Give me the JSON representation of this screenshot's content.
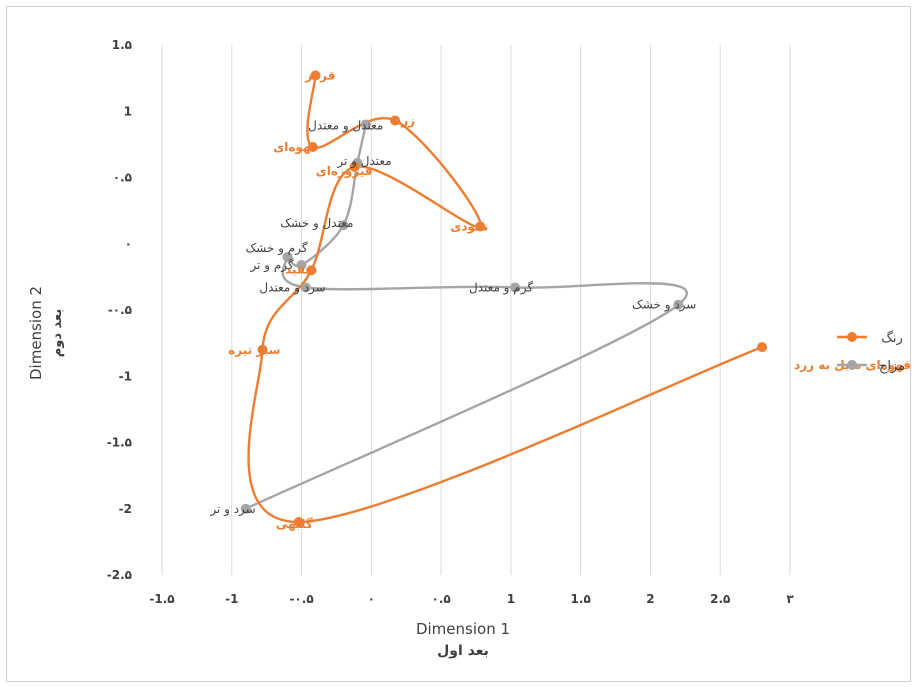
{
  "chart_data": {
    "type": "scatter",
    "xlabel": "Dimension 1",
    "xlabel_sub": "بعد اول",
    "ylabel": "Dimension 2",
    "ylabel_sub": "بعد دوم",
    "xlim": [
      -1.5,
      3
    ],
    "ylim": [
      -2.5,
      1.5
    ],
    "grid": "vertical",
    "legend_position": "right",
    "x_ticks": [
      {
        "value": -1.5,
        "label": "-1.۵"
      },
      {
        "value": -1,
        "label": "-1"
      },
      {
        "value": -0.5,
        "label": "-۰.۵"
      },
      {
        "value": 0,
        "label": "۰"
      },
      {
        "value": 0.5,
        "label": "۰.۵"
      },
      {
        "value": 1,
        "label": "1"
      },
      {
        "value": 1.5,
        "label": "1.۵"
      },
      {
        "value": 2,
        "label": "2"
      },
      {
        "value": 2.5,
        "label": "2.۵"
      },
      {
        "value": 3,
        "label": "۳"
      }
    ],
    "y_ticks": [
      {
        "value": 1.5,
        "label": "1.۵"
      },
      {
        "value": 1,
        "label": "1"
      },
      {
        "value": 0.5,
        "label": "۰.۵"
      },
      {
        "value": 0,
        "label": "۰"
      },
      {
        "value": -0.5,
        "label": "-۰.۵"
      },
      {
        "value": -1,
        "label": "-1"
      },
      {
        "value": -1.5,
        "label": "-1.۵"
      },
      {
        "value": -2,
        "label": "-2"
      },
      {
        "value": -2.5,
        "label": "-2.۵"
      }
    ],
    "series": [
      {
        "name": "رنگ",
        "color": "#ed7d31",
        "points": [
          {
            "x": -0.4,
            "y": 1.27,
            "label": "قرمز"
          },
          {
            "x": -0.42,
            "y": 0.73,
            "label": "قهوه‌ای"
          },
          {
            "x": 0.17,
            "y": 0.93,
            "label": "زرد"
          },
          {
            "x": 0.78,
            "y": 0.13,
            "label": "نخودی"
          },
          {
            "x": -0.12,
            "y": 0.58,
            "label": "فیروزه‌ای"
          },
          {
            "x": -0.43,
            "y": -0.2,
            "label": "سفید"
          },
          {
            "x": -0.78,
            "y": -0.8,
            "label": "سبز تیره"
          },
          {
            "x": -0.52,
            "y": -2.1,
            "label": "گلبهی"
          },
          {
            "x": 2.8,
            "y": -0.78,
            "label": "قهوه‌ای مایل به زرد"
          }
        ]
      },
      {
        "name": "مزاج",
        "color": "#a5a5a5",
        "points": [
          {
            "x": -0.04,
            "y": 0.9,
            "label": "معتدل و معتدل"
          },
          {
            "x": -0.1,
            "y": 0.61,
            "label": "معتدل و تر"
          },
          {
            "x": -0.2,
            "y": 0.14,
            "label": "معتدل و خشک"
          },
          {
            "x": -0.5,
            "y": -0.16,
            "label": "گرم و خشک"
          },
          {
            "x": -0.6,
            "y": -0.1,
            "label": "گرم و تر"
          },
          {
            "x": -0.47,
            "y": -0.33,
            "label": "سرد و معتدل"
          },
          {
            "x": 1.03,
            "y": -0.33,
            "label": "گرم و معتدل"
          },
          {
            "x": 2.2,
            "y": -0.46,
            "label": "سرد و خشک"
          },
          {
            "x": -0.9,
            "y": -2.0,
            "label": "سرد و تر"
          }
        ]
      }
    ]
  }
}
